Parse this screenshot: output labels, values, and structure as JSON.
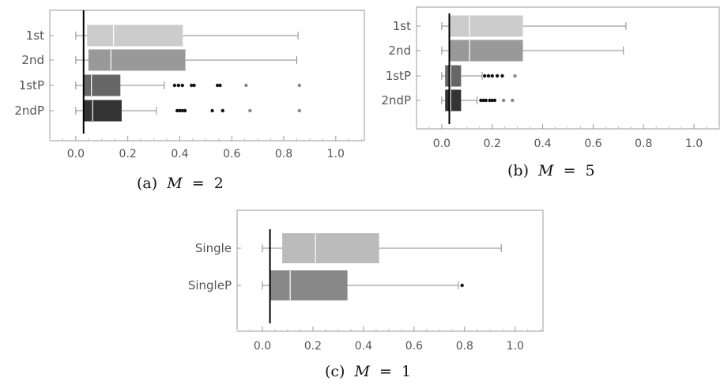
{
  "chart_data": [
    {
      "type": "boxplot",
      "caption_prefix": "(a)",
      "caption_var": "M",
      "caption_rel": "=",
      "caption_value": "2",
      "categories": [
        "1st",
        "2nd",
        "1stP",
        "2ndP"
      ],
      "xlim": [
        -0.1,
        1.11
      ],
      "xticks": [
        0.0,
        0.2,
        0.4,
        0.6,
        0.8,
        1.0
      ],
      "xtick_labels": [
        "0.0",
        "0.2",
        "0.4",
        "0.6",
        "0.8",
        "1.0"
      ],
      "reference_line": 0.03,
      "boxes": [
        {
          "name": "1st",
          "min": 0.0,
          "q1": 0.045,
          "median": 0.145,
          "q3": 0.41,
          "max": 0.855,
          "color": "#cccccc",
          "outliers": [],
          "far_outliers": []
        },
        {
          "name": "2nd",
          "min": 0.0,
          "q1": 0.05,
          "median": 0.135,
          "q3": 0.42,
          "max": 0.85,
          "color": "#999999",
          "outliers": [],
          "far_outliers": []
        },
        {
          "name": "1stP",
          "min": 0.0,
          "q1": 0.03,
          "median": 0.06,
          "q3": 0.17,
          "max": 0.34,
          "color": "#666666",
          "outliers": [
            0.38,
            0.395,
            0.41,
            0.445,
            0.455,
            0.545,
            0.555
          ],
          "far_outliers": [
            0.655,
            0.86
          ]
        },
        {
          "name": "2ndP",
          "min": 0.0,
          "q1": 0.03,
          "median": 0.065,
          "q3": 0.175,
          "max": 0.31,
          "color": "#333333",
          "outliers": [
            0.39,
            0.4,
            0.41,
            0.42,
            0.525,
            0.565
          ],
          "far_outliers": [
            0.67,
            0.86
          ]
        }
      ]
    },
    {
      "type": "boxplot",
      "caption_prefix": "(b)",
      "caption_var": "M",
      "caption_rel": "=",
      "caption_value": "5",
      "categories": [
        "1st",
        "2nd",
        "1stP",
        "2ndP"
      ],
      "xlim": [
        -0.1,
        1.1
      ],
      "xticks": [
        0.0,
        0.2,
        0.4,
        0.6,
        0.8,
        1.0
      ],
      "xtick_labels": [
        "0.0",
        "0.2",
        "0.4",
        "0.6",
        "0.8",
        "1.0"
      ],
      "reference_line": 0.03,
      "boxes": [
        {
          "name": "1st",
          "min": 0.0,
          "q1": 0.03,
          "median": 0.11,
          "q3": 0.32,
          "max": 0.73,
          "color": "#cccccc",
          "outliers": [],
          "far_outliers": []
        },
        {
          "name": "2nd",
          "min": 0.0,
          "q1": 0.03,
          "median": 0.11,
          "q3": 0.32,
          "max": 0.72,
          "color": "#999999",
          "outliers": [],
          "far_outliers": []
        },
        {
          "name": "1stP",
          "min": 0.0,
          "q1": 0.015,
          "median": 0.035,
          "q3": 0.075,
          "max": 0.16,
          "color": "#666666",
          "outliers": [
            0.17,
            0.185,
            0.2,
            0.22,
            0.24
          ],
          "far_outliers": [
            0.29
          ]
        },
        {
          "name": "2ndP",
          "min": 0.0,
          "q1": 0.015,
          "median": 0.035,
          "q3": 0.075,
          "max": 0.14,
          "color": "#333333",
          "outliers": [
            0.155,
            0.165,
            0.175,
            0.19,
            0.2,
            0.21
          ],
          "far_outliers": [
            0.245,
            0.28
          ]
        }
      ]
    },
    {
      "type": "boxplot",
      "caption_prefix": "(c)",
      "caption_var": "M",
      "caption_rel": "=",
      "caption_value": "1",
      "categories": [
        "Single",
        "SingleP"
      ],
      "xlim": [
        -0.1,
        1.11
      ],
      "xticks": [
        0.0,
        0.2,
        0.4,
        0.6,
        0.8,
        1.0
      ],
      "xtick_labels": [
        "0.0",
        "0.2",
        "0.4",
        "0.6",
        "0.8",
        "1.0"
      ],
      "reference_line": 0.03,
      "boxes": [
        {
          "name": "Single",
          "min": 0.0,
          "q1": 0.08,
          "median": 0.21,
          "q3": 0.46,
          "max": 0.945,
          "color": "#bbbbbb",
          "outliers": [],
          "far_outliers": []
        },
        {
          "name": "SingleP",
          "min": 0.0,
          "q1": 0.03,
          "median": 0.11,
          "q3": 0.335,
          "max": 0.775,
          "color": "#888888",
          "outliers": [
            0.79
          ],
          "far_outliers": []
        }
      ]
    }
  ]
}
